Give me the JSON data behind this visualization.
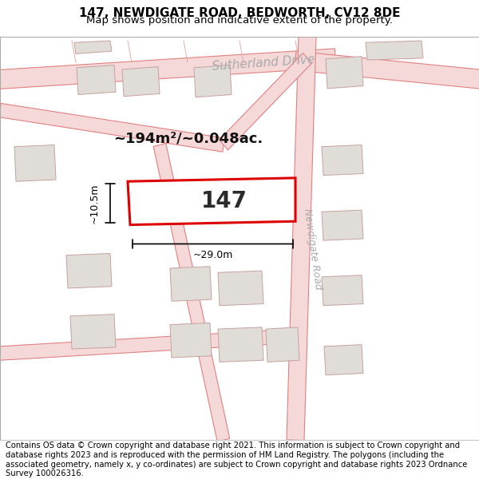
{
  "title_line1": "147, NEWDIGATE ROAD, BEDWORTH, CV12 8DE",
  "title_line2": "Map shows position and indicative extent of the property.",
  "footer_text": "Contains OS data © Crown copyright and database right 2021. This information is subject to Crown copyright and database rights 2023 and is reproduced with the permission of HM Land Registry. The polygons (including the associated geometry, namely x, y co-ordinates) are subject to Crown copyright and database rights 2023 Ordnance Survey 100026316.",
  "map_bg": "#f7f5f2",
  "road_fill": "#f5d8d8",
  "road_edge": "#e08080",
  "road_edge_lw": 0.8,
  "plot_fill": "#ffffff",
  "plot_edge": "#dd0000",
  "plot_edge_lw": 2.2,
  "building_fill": "#e0ddd8",
  "building_edge": "#c8a0a0",
  "building_edge_lw": 0.7,
  "lot_line_color": "#e8aaaa",
  "lot_line_lw": 0.7,
  "area_text": "~194m²/~0.048ac.",
  "width_text": "~29.0m",
  "height_text": "~10.5m",
  "plot_number": "147",
  "road_label_sutherland": "Sutherland Drive",
  "road_label_newdigate": "Newdigate Road",
  "title_fontsize": 11,
  "subtitle_fontsize": 9.5,
  "footer_fontsize": 7.2,
  "area_fontsize": 13,
  "plot_num_fontsize": 20,
  "dim_fontsize": 9,
  "road_label_color": "#aaaaaa",
  "road_label_fontsize": 11
}
